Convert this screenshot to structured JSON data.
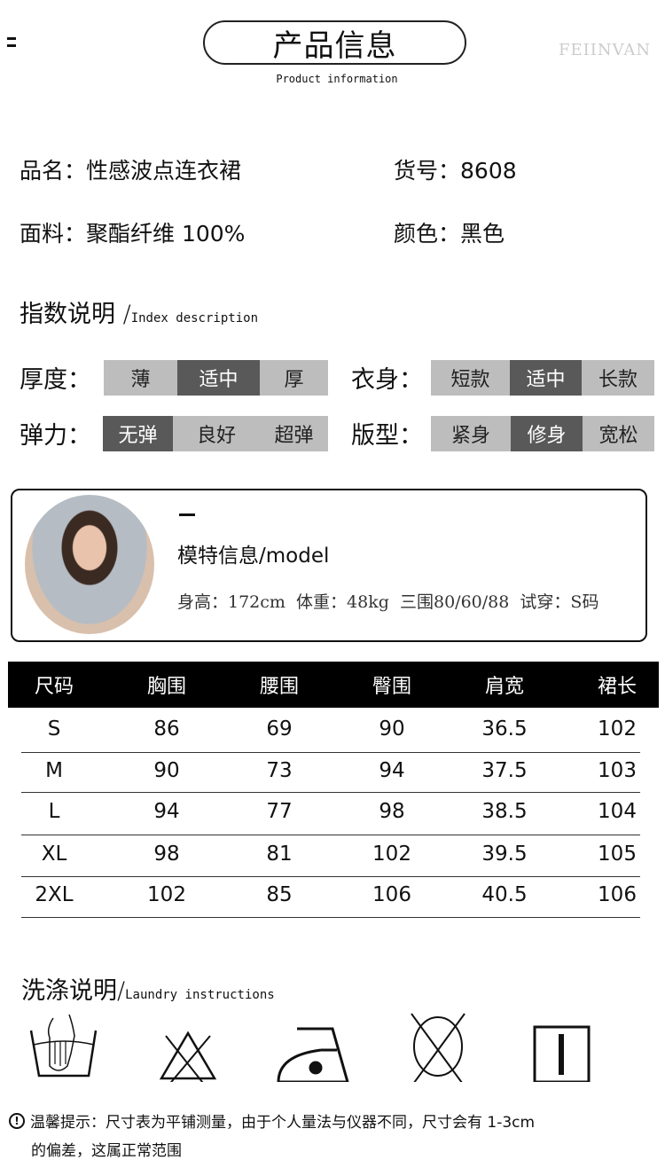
{
  "header": {
    "title": "产品信息",
    "subtitle": "Product information",
    "brand": "FEIINVAN"
  },
  "info": {
    "name_label": "品名：",
    "name": "性感波点连衣裙",
    "sku_label": "货号：",
    "sku": "8608",
    "fabric_label": "面料：",
    "fabric": "聚酯纤维 100%",
    "color_label": "颜色：",
    "color": "黑色"
  },
  "index": {
    "title": "指数说明",
    "slash": "/",
    "subtitle": "Index description",
    "scales": [
      {
        "label": "厚度：",
        "options": [
          "薄",
          "适中",
          "厚"
        ],
        "selected": "适中"
      },
      {
        "label": "衣身：",
        "options": [
          "短款",
          "适中",
          "长款"
        ],
        "selected": "适中"
      },
      {
        "label": "弹力：",
        "options": [
          "无弹",
          "良好",
          "超弹"
        ],
        "selected": "无弹"
      },
      {
        "label": "版型：",
        "options": [
          "紧身",
          "修身",
          "宽松"
        ],
        "selected": "修身"
      }
    ],
    "colors": {
      "selected": "#595959",
      "unselected": "#bdbdbd"
    }
  },
  "model": {
    "title": "模特信息/model",
    "height": "身高：172cm",
    "weight": "体重：48kg",
    "measurements": "三围80/60/88",
    "size": "试穿：S码"
  },
  "size_table": {
    "headers": [
      "尺码",
      "胸围",
      "腰围",
      "臀围",
      "肩宽",
      "裙长"
    ],
    "rows": [
      [
        "S",
        "86",
        "69",
        "90",
        "36.5",
        "102"
      ],
      [
        "M",
        "90",
        "73",
        "94",
        "37.5",
        "103"
      ],
      [
        "L",
        "94",
        "77",
        "98",
        "38.5",
        "104"
      ],
      [
        "XL",
        "98",
        "81",
        "102",
        "39.5",
        "105"
      ],
      [
        "2XL",
        "102",
        "85",
        "106",
        "40.5",
        "106"
      ]
    ]
  },
  "laundry": {
    "title": "洗涤说明",
    "slash": "/",
    "subtitle": "Laundry instructions",
    "icons": [
      "hand-wash-icon",
      "do-not-bleach-icon",
      "iron-low-heat-icon",
      "do-not-dry-clean-icon",
      "line-dry-icon"
    ]
  },
  "note": {
    "icon": "exclamation-circle-icon",
    "line1": "温馨提示：尺寸表为平铺测量，由于个人量法与仪器不同，尺寸会有 1-3cm",
    "line2": "的偏差，这属正常范围"
  }
}
